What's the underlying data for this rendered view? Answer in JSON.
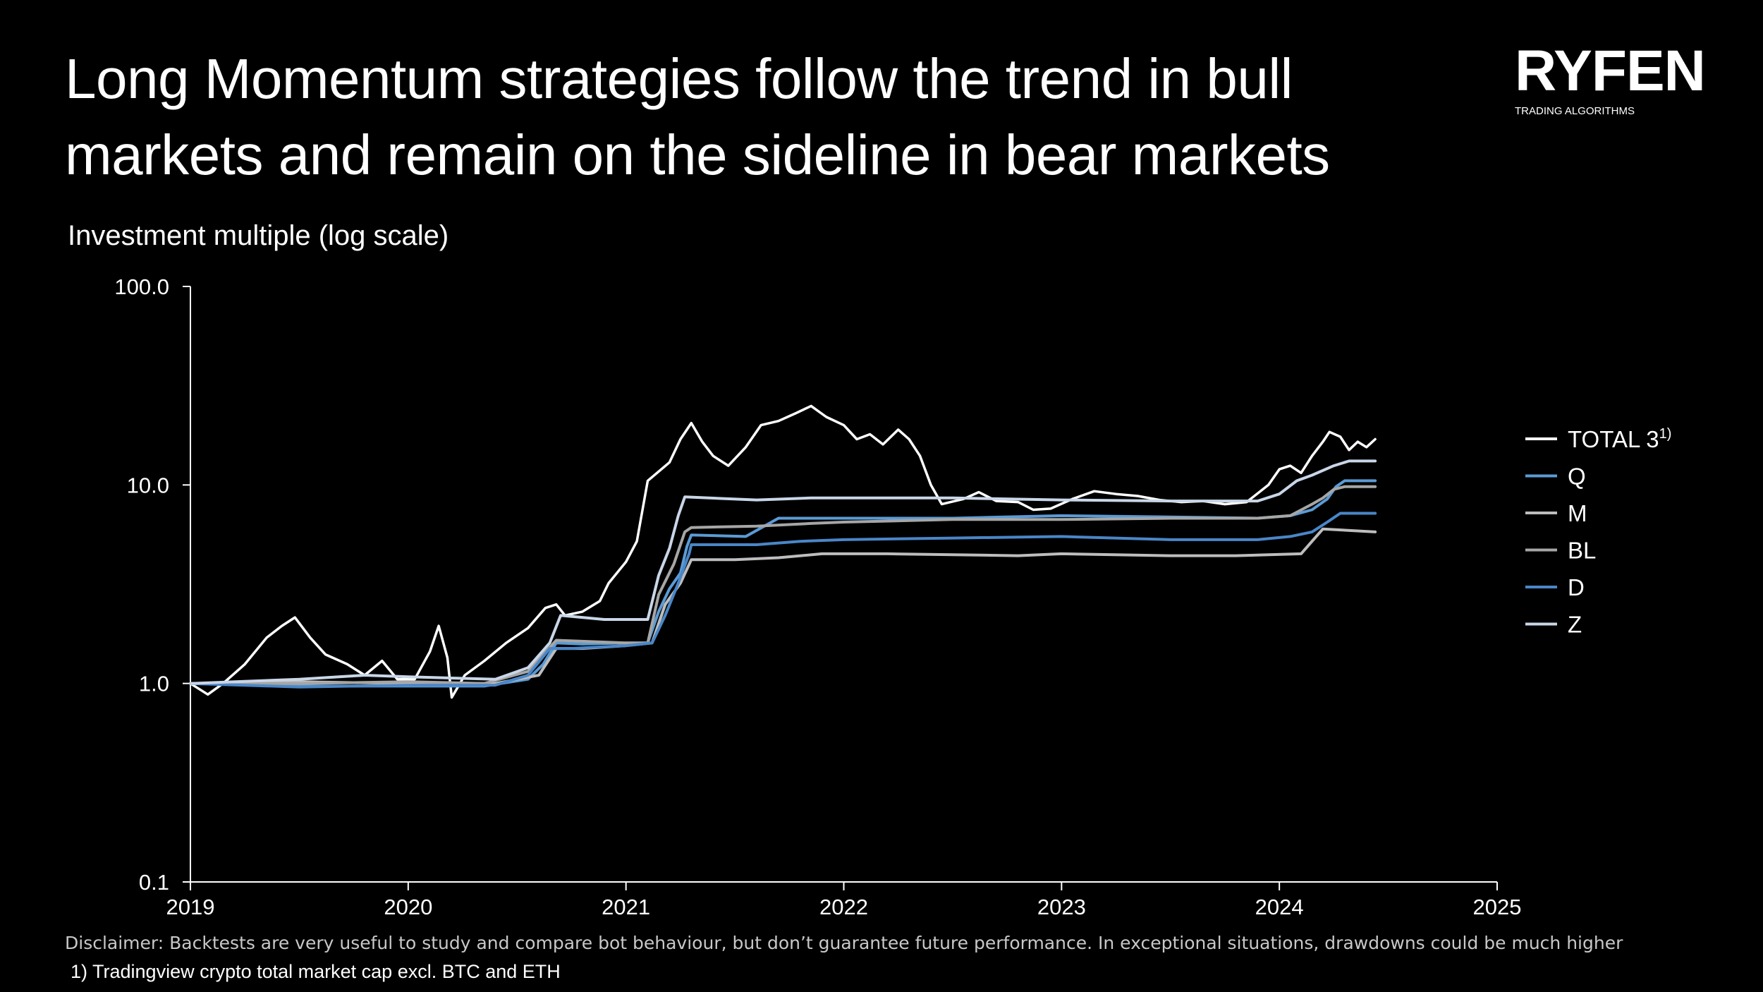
{
  "slide": {
    "title_lines": [
      "Long Momentum strategies follow the trend in bull",
      "markets and remain on the sideline in bear markets"
    ],
    "subtitle": "Investment multiple (log scale)",
    "logo": {
      "name": "RYFEN",
      "tagline": "TRADING ALGORITHMS"
    },
    "disclaimer": "Disclaimer: Backtests are very useful to study and compare bot behaviour, but don’t guarantee future performance. In exceptional situations, drawdowns could be much higher",
    "footnote": "1) Tradingview crypto total market cap excl. BTC and ETH"
  },
  "chart_data": {
    "type": "line",
    "y_scale": "log",
    "ylabel": "Investment multiple (log scale)",
    "ylim": [
      0.1,
      100
    ],
    "y_ticks": [
      0.1,
      1.0,
      10.0,
      100.0
    ],
    "y_tick_labels": [
      "0.1",
      "1.0",
      "10.0",
      "100.0"
    ],
    "xlim": [
      2019,
      2025
    ],
    "x_ticks": [
      2019,
      2020,
      2021,
      2022,
      2023,
      2024,
      2025
    ],
    "x_tick_labels": [
      "2019",
      "2020",
      "2021",
      "2022",
      "2023",
      "2024",
      "2025"
    ],
    "grid": false,
    "legend": "right",
    "series": [
      {
        "name": "TOTAL 3",
        "superscript": "1)",
        "color": "#ffffff",
        "points": [
          [
            2019.0,
            1.0
          ],
          [
            2019.08,
            0.88
          ],
          [
            2019.15,
            1.0
          ],
          [
            2019.25,
            1.25
          ],
          [
            2019.35,
            1.7
          ],
          [
            2019.42,
            1.95
          ],
          [
            2019.48,
            2.15
          ],
          [
            2019.55,
            1.7
          ],
          [
            2019.62,
            1.4
          ],
          [
            2019.72,
            1.25
          ],
          [
            2019.8,
            1.1
          ],
          [
            2019.88,
            1.3
          ],
          [
            2019.95,
            1.05
          ],
          [
            2020.03,
            1.05
          ],
          [
            2020.1,
            1.45
          ],
          [
            2020.14,
            1.95
          ],
          [
            2020.18,
            1.35
          ],
          [
            2020.2,
            0.85
          ],
          [
            2020.26,
            1.1
          ],
          [
            2020.35,
            1.3
          ],
          [
            2020.45,
            1.6
          ],
          [
            2020.55,
            1.9
          ],
          [
            2020.63,
            2.4
          ],
          [
            2020.68,
            2.5
          ],
          [
            2020.72,
            2.2
          ],
          [
            2020.8,
            2.3
          ],
          [
            2020.88,
            2.6
          ],
          [
            2020.92,
            3.2
          ],
          [
            2021.0,
            4.1
          ],
          [
            2021.05,
            5.2
          ],
          [
            2021.1,
            10.5
          ],
          [
            2021.2,
            13.0
          ],
          [
            2021.25,
            17.0
          ],
          [
            2021.3,
            20.5
          ],
          [
            2021.35,
            16.5
          ],
          [
            2021.4,
            14.0
          ],
          [
            2021.47,
            12.5
          ],
          [
            2021.55,
            15.5
          ],
          [
            2021.62,
            20.0
          ],
          [
            2021.7,
            21.0
          ],
          [
            2021.78,
            23.0
          ],
          [
            2021.85,
            25.0
          ],
          [
            2021.92,
            22.0
          ],
          [
            2022.0,
            20.0
          ],
          [
            2022.06,
            17.0
          ],
          [
            2022.12,
            18.0
          ],
          [
            2022.18,
            16.0
          ],
          [
            2022.25,
            19.0
          ],
          [
            2022.3,
            17.0
          ],
          [
            2022.35,
            14.0
          ],
          [
            2022.4,
            10.0
          ],
          [
            2022.45,
            8.0
          ],
          [
            2022.55,
            8.5
          ],
          [
            2022.62,
            9.2
          ],
          [
            2022.7,
            8.3
          ],
          [
            2022.8,
            8.2
          ],
          [
            2022.87,
            7.5
          ],
          [
            2022.95,
            7.6
          ],
          [
            2023.05,
            8.5
          ],
          [
            2023.15,
            9.3
          ],
          [
            2023.25,
            9.0
          ],
          [
            2023.35,
            8.8
          ],
          [
            2023.45,
            8.4
          ],
          [
            2023.55,
            8.2
          ],
          [
            2023.65,
            8.3
          ],
          [
            2023.75,
            8.0
          ],
          [
            2023.85,
            8.2
          ],
          [
            2023.95,
            10.0
          ],
          [
            2024.0,
            12.0
          ],
          [
            2024.05,
            12.5
          ],
          [
            2024.1,
            11.5
          ],
          [
            2024.15,
            14.0
          ],
          [
            2024.2,
            16.5
          ],
          [
            2024.23,
            18.5
          ],
          [
            2024.28,
            17.5
          ],
          [
            2024.32,
            15.0
          ],
          [
            2024.36,
            16.5
          ],
          [
            2024.4,
            15.5
          ],
          [
            2024.44,
            17.0
          ]
        ]
      },
      {
        "name": "Q",
        "color": "#5b9bd5",
        "points": [
          [
            2019.0,
            1.0
          ],
          [
            2019.5,
            0.97
          ],
          [
            2019.8,
            0.97
          ],
          [
            2020.0,
            0.97
          ],
          [
            2020.35,
            0.97
          ],
          [
            2020.55,
            1.05
          ],
          [
            2020.62,
            1.25
          ],
          [
            2020.68,
            1.6
          ],
          [
            2020.8,
            1.58
          ],
          [
            2021.0,
            1.6
          ],
          [
            2021.1,
            1.6
          ],
          [
            2021.15,
            2.3
          ],
          [
            2021.2,
            3.0
          ],
          [
            2021.25,
            3.6
          ],
          [
            2021.28,
            4.9
          ],
          [
            2021.3,
            5.6
          ],
          [
            2021.55,
            5.5
          ],
          [
            2021.7,
            6.8
          ],
          [
            2022.0,
            6.8
          ],
          [
            2022.5,
            6.8
          ],
          [
            2023.0,
            7.0
          ],
          [
            2023.5,
            6.9
          ],
          [
            2023.9,
            6.8
          ],
          [
            2024.05,
            7.0
          ],
          [
            2024.15,
            7.5
          ],
          [
            2024.22,
            8.5
          ],
          [
            2024.26,
            9.8
          ],
          [
            2024.3,
            10.5
          ],
          [
            2024.44,
            10.5
          ]
        ]
      },
      {
        "name": "M",
        "color": "#bdbdbd",
        "points": [
          [
            2019.0,
            1.0
          ],
          [
            2019.5,
            1.02
          ],
          [
            2020.0,
            1.0
          ],
          [
            2020.4,
            1.0
          ],
          [
            2020.6,
            1.1
          ],
          [
            2020.68,
            1.5
          ],
          [
            2020.8,
            1.5
          ],
          [
            2021.0,
            1.55
          ],
          [
            2021.12,
            1.6
          ],
          [
            2021.18,
            2.5
          ],
          [
            2021.25,
            3.2
          ],
          [
            2021.3,
            4.2
          ],
          [
            2021.5,
            4.2
          ],
          [
            2021.7,
            4.3
          ],
          [
            2021.9,
            4.5
          ],
          [
            2022.2,
            4.5
          ],
          [
            2022.8,
            4.4
          ],
          [
            2023.0,
            4.5
          ],
          [
            2023.5,
            4.4
          ],
          [
            2023.8,
            4.4
          ],
          [
            2024.1,
            4.5
          ],
          [
            2024.15,
            5.2
          ],
          [
            2024.2,
            6.0
          ],
          [
            2024.44,
            5.8
          ]
        ]
      },
      {
        "name": "BL",
        "color": "#a6a6a6",
        "points": [
          [
            2019.0,
            1.0
          ],
          [
            2019.5,
            1.0
          ],
          [
            2020.0,
            1.02
          ],
          [
            2020.35,
            1.0
          ],
          [
            2020.55,
            1.15
          ],
          [
            2020.68,
            1.65
          ],
          [
            2021.0,
            1.6
          ],
          [
            2021.1,
            1.6
          ],
          [
            2021.15,
            2.8
          ],
          [
            2021.22,
            4.0
          ],
          [
            2021.27,
            5.8
          ],
          [
            2021.3,
            6.1
          ],
          [
            2021.6,
            6.2
          ],
          [
            2021.85,
            6.4
          ],
          [
            2022.0,
            6.5
          ],
          [
            2022.5,
            6.7
          ],
          [
            2023.0,
            6.7
          ],
          [
            2023.5,
            6.8
          ],
          [
            2023.9,
            6.8
          ],
          [
            2024.05,
            7.0
          ],
          [
            2024.15,
            8.0
          ],
          [
            2024.2,
            8.6
          ],
          [
            2024.25,
            9.5
          ],
          [
            2024.3,
            9.8
          ],
          [
            2024.44,
            9.8
          ]
        ]
      },
      {
        "name": "D",
        "color": "#4a86c8",
        "points": [
          [
            2019.0,
            1.0
          ],
          [
            2019.5,
            0.96
          ],
          [
            2020.0,
            0.98
          ],
          [
            2020.4,
            0.98
          ],
          [
            2020.55,
            1.1
          ],
          [
            2020.65,
            1.5
          ],
          [
            2020.75,
            1.5
          ],
          [
            2021.0,
            1.55
          ],
          [
            2021.12,
            1.6
          ],
          [
            2021.18,
            2.2
          ],
          [
            2021.24,
            3.2
          ],
          [
            2021.29,
            4.5
          ],
          [
            2021.3,
            5.0
          ],
          [
            2021.6,
            5.0
          ],
          [
            2021.8,
            5.2
          ],
          [
            2022.0,
            5.3
          ],
          [
            2022.5,
            5.4
          ],
          [
            2023.0,
            5.5
          ],
          [
            2023.5,
            5.3
          ],
          [
            2023.9,
            5.3
          ],
          [
            2024.05,
            5.5
          ],
          [
            2024.15,
            5.8
          ],
          [
            2024.22,
            6.5
          ],
          [
            2024.28,
            7.2
          ],
          [
            2024.44,
            7.2
          ]
        ]
      },
      {
        "name": "Z",
        "color": "#c9d6e8",
        "points": [
          [
            2019.0,
            1.0
          ],
          [
            2019.5,
            1.05
          ],
          [
            2019.8,
            1.1
          ],
          [
            2020.0,
            1.08
          ],
          [
            2020.4,
            1.05
          ],
          [
            2020.55,
            1.2
          ],
          [
            2020.65,
            1.6
          ],
          [
            2020.7,
            2.2
          ],
          [
            2020.9,
            2.1
          ],
          [
            2021.1,
            2.1
          ],
          [
            2021.15,
            3.5
          ],
          [
            2021.2,
            4.8
          ],
          [
            2021.24,
            7.0
          ],
          [
            2021.27,
            8.7
          ],
          [
            2021.6,
            8.4
          ],
          [
            2021.85,
            8.6
          ],
          [
            2022.0,
            8.6
          ],
          [
            2022.5,
            8.6
          ],
          [
            2023.0,
            8.4
          ],
          [
            2023.5,
            8.3
          ],
          [
            2023.9,
            8.3
          ],
          [
            2024.0,
            9.0
          ],
          [
            2024.08,
            10.5
          ],
          [
            2024.15,
            11.2
          ],
          [
            2024.25,
            12.5
          ],
          [
            2024.32,
            13.2
          ],
          [
            2024.44,
            13.2
          ]
        ]
      }
    ]
  }
}
